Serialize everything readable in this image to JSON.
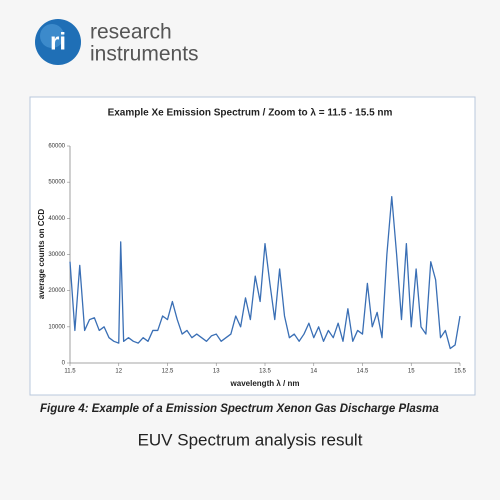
{
  "logo": {
    "mark": "ri",
    "line1": "research",
    "line2": "instruments"
  },
  "chart_data": {
    "type": "line",
    "title": "Example Xe  Emission Spectrum / Zoom to λ = 11.5 - 15.5 nm",
    "x_label": "wavelength λ / nm",
    "y_label": "average counts on CCD",
    "x": [
      11.5,
      11.55,
      11.6,
      11.65,
      11.7,
      11.75,
      11.8,
      11.85,
      11.9,
      11.95,
      12.0,
      12.02,
      12.05,
      12.1,
      12.15,
      12.2,
      12.25,
      12.3,
      12.35,
      12.4,
      12.45,
      12.5,
      12.55,
      12.6,
      12.65,
      12.7,
      12.75,
      12.8,
      12.85,
      12.9,
      12.95,
      13.0,
      13.05,
      13.1,
      13.15,
      13.2,
      13.25,
      13.3,
      13.35,
      13.4,
      13.45,
      13.5,
      13.55,
      13.6,
      13.65,
      13.7,
      13.75,
      13.8,
      13.85,
      13.9,
      13.95,
      14.0,
      14.05,
      14.1,
      14.15,
      14.2,
      14.25,
      14.3,
      14.35,
      14.4,
      14.45,
      14.5,
      14.55,
      14.6,
      14.65,
      14.7,
      14.75,
      14.8,
      14.85,
      14.9,
      14.95,
      15.0,
      15.05,
      15.1,
      15.15,
      15.2,
      15.25,
      15.3,
      15.35,
      15.4,
      15.45,
      15.5
    ],
    "series": [
      {
        "color": "#3a6fb5",
        "values": [
          28000,
          9000,
          27000,
          9000,
          12000,
          12500,
          9000,
          10000,
          7000,
          6000,
          5500,
          33500,
          6000,
          7000,
          6000,
          5500,
          7000,
          6000,
          9000,
          9000,
          13000,
          12000,
          17000,
          12000,
          8000,
          9000,
          7000,
          8000,
          7000,
          6000,
          7500,
          8000,
          6000,
          7000,
          8000,
          13000,
          10000,
          18000,
          12000,
          24000,
          17000,
          33000,
          22000,
          12000,
          26000,
          13000,
          7000,
          8000,
          6000,
          8000,
          11000,
          7000,
          10000,
          6000,
          9000,
          7000,
          11000,
          6000,
          15000,
          6000,
          9000,
          8000,
          22000,
          10000,
          14000,
          7000,
          30000,
          46000,
          30000,
          12000,
          33000,
          10000,
          26000,
          10000,
          8000,
          28000,
          23000,
          7000,
          9000,
          4000,
          5000,
          13000
        ]
      }
    ],
    "xlim": [
      11.5,
      15.5
    ],
    "xticks": [
      11.5,
      12,
      12.5,
      13,
      13.5,
      14,
      14.5,
      15,
      15.5
    ],
    "ylim": [
      0,
      60000
    ],
    "yticks": [
      0,
      10000,
      20000,
      30000,
      40000,
      50000,
      60000
    ],
    "grid": false
  },
  "caption": "Figure 4: Example of a Emission Spectrum Xenon Gas Discharge Plasma",
  "footer": "EUV Spectrum analysis result"
}
